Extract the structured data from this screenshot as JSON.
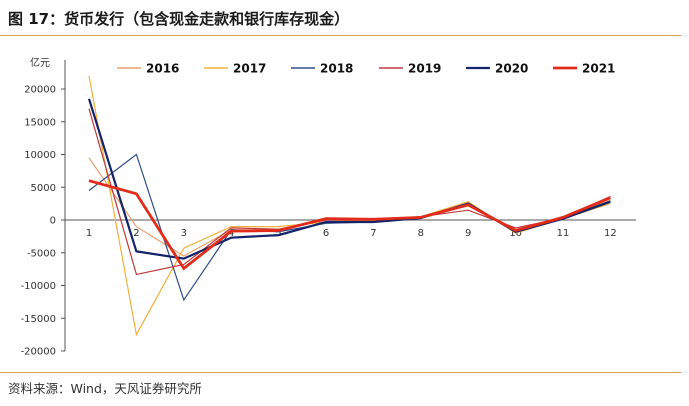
{
  "header": {
    "title": "图 17：货币发行（包含现金走款和银行库存现金）"
  },
  "footer": {
    "source": "资料来源：Wind，天风证券研究所"
  },
  "chart_data": {
    "type": "line",
    "ylabel": "亿元",
    "ylim": [
      -20000,
      25000
    ],
    "yticks": [
      -20000,
      -15000,
      -10000,
      -5000,
      0,
      5000,
      10000,
      15000,
      20000
    ],
    "ytick_labels": [
      "-20000",
      "-15000",
      "-10000",
      "-5000",
      "0",
      "5000",
      "10000",
      "15000",
      "20000"
    ],
    "x": [
      1,
      2,
      3,
      4,
      5,
      6,
      7,
      8,
      9,
      10,
      11,
      12
    ],
    "x_labels": [
      "1",
      "2",
      "3",
      "4",
      "5",
      "6",
      "7",
      "8",
      "9",
      "10",
      "11",
      "12"
    ],
    "legend_position": "top",
    "grid": false,
    "series": [
      {
        "name": "2016",
        "color": "#e8a070",
        "width": 1.2,
        "values": [
          9500,
          -1000,
          -5500,
          -1500,
          -1500,
          0,
          0,
          300,
          2200,
          -1500,
          500,
          3000
        ]
      },
      {
        "name": "2017",
        "color": "#f3b03c",
        "width": 1.2,
        "values": [
          22000,
          -17500,
          -4300,
          -1000,
          -1000,
          -300,
          0,
          500,
          2800,
          -2000,
          200,
          2500
        ]
      },
      {
        "name": "2018",
        "color": "#2f4b8c",
        "width": 1.2,
        "values": [
          4500,
          10000,
          -12200,
          -1500,
          -1800,
          -500,
          -300,
          300,
          2500,
          -1600,
          300,
          2900
        ]
      },
      {
        "name": "2019",
        "color": "#c0393b",
        "width": 1.2,
        "values": [
          17000,
          -8300,
          -6800,
          -1200,
          -1400,
          0,
          0,
          500,
          1500,
          -1200,
          300,
          3600
        ]
      },
      {
        "name": "2020",
        "color": "#14246a",
        "width": 2.2,
        "values": [
          18500,
          -4800,
          -5900,
          -2700,
          -2300,
          -300,
          -300,
          300,
          2500,
          -1800,
          200,
          2800
        ]
      },
      {
        "name": "2021",
        "color": "#e32b1a",
        "width": 2.8,
        "values": [
          6000,
          4000,
          -7400,
          -1700,
          -1600,
          200,
          100,
          400,
          2300,
          -1600,
          400,
          3400
        ]
      }
    ]
  }
}
